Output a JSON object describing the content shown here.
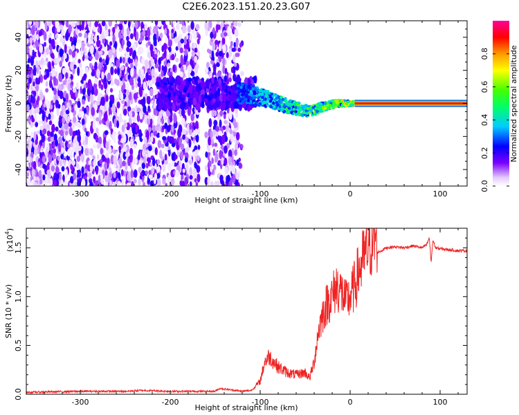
{
  "title": "C2E6.2023.151.20.23.G07",
  "colors": {
    "snr_line": "#ee2222",
    "spectrum_noise": "#6600ff"
  },
  "colorbar": {
    "label": "Normalized spectral amplitude",
    "ticks": [
      "0.0",
      "0.2",
      "0.4",
      "0.6",
      "0.8"
    ],
    "tick_values": [
      0.0,
      0.2,
      0.4,
      0.6,
      0.8
    ],
    "range": [
      0,
      1
    ],
    "colormap": "rainbow"
  },
  "chart_data": [
    {
      "type": "heatmap",
      "name": "spectrogram",
      "xlabel": "Height of straight line (km)",
      "ylabel": "Frequency (Hz)",
      "xlim": [
        -360,
        130
      ],
      "ylim": [
        -50,
        50
      ],
      "x_ticks": [
        -300,
        -200,
        -100,
        0,
        100
      ],
      "x_tick_labels": [
        "-300",
        "-200",
        "-100",
        "0",
        "100"
      ],
      "y_ticks": [
        -40,
        -20,
        0,
        20,
        40
      ],
      "y_tick_labels": [
        "-40",
        "-20",
        "0",
        "20",
        "40"
      ],
      "noise_region_x": [
        -360,
        -120
      ],
      "noise_gap_x": [
        -168,
        -160
      ],
      "signal_track": [
        {
          "x": -120,
          "freq": 6
        },
        {
          "x": -100,
          "freq": 4
        },
        {
          "x": -80,
          "freq": 0
        },
        {
          "x": -60,
          "freq": -3
        },
        {
          "x": -45,
          "freq": -5
        },
        {
          "x": -30,
          "freq": -2
        },
        {
          "x": -15,
          "freq": 0
        },
        {
          "x": 0,
          "freq": 0
        },
        {
          "x": 130,
          "freq": 0
        }
      ],
      "tone_start_x": 5
    },
    {
      "type": "line",
      "name": "snr",
      "xlabel": "Height of straight line (km)",
      "ylabel": "SNR (10 * v/v)",
      "y_scale_label": "(x10",
      "y_scale_exp": "4",
      "y_scale_suffix": ")",
      "xlim": [
        -360,
        130
      ],
      "ylim": [
        0,
        1.7
      ],
      "x_ticks": [
        -300,
        -200,
        -100,
        0,
        100
      ],
      "x_tick_labels": [
        "-300",
        "-200",
        "-100",
        "0",
        "100"
      ],
      "y_ticks": [
        0,
        0.5,
        1.0,
        1.5
      ],
      "y_tick_labels": [
        "0.0",
        "0.5",
        "1.0",
        "1.5"
      ],
      "series": [
        {
          "x": [
            -360,
            -300,
            -250,
            -230,
            -200,
            -150,
            -145,
            -120,
            -110,
            -100,
            -95,
            -90,
            -85,
            -80,
            -70,
            -60,
            -50,
            -45,
            -40,
            -35,
            -30,
            -25,
            -20,
            -15,
            -10,
            -5,
            0,
            5,
            10,
            15,
            20,
            25,
            30,
            35,
            40,
            50,
            60,
            70,
            80,
            85,
            88,
            90,
            92,
            95,
            100,
            110,
            120,
            130
          ],
          "y": [
            0.02,
            0.03,
            0.03,
            0.04,
            0.03,
            0.03,
            0.06,
            0.03,
            0.04,
            0.12,
            0.3,
            0.35,
            0.3,
            0.25,
            0.2,
            0.18,
            0.2,
            0.15,
            0.3,
            0.6,
            0.75,
            0.85,
            0.9,
            1.0,
            0.95,
            0.85,
            0.9,
            1.0,
            1.15,
            1.25,
            1.35,
            1.42,
            1.45,
            1.47,
            1.5,
            1.51,
            1.5,
            1.52,
            1.5,
            1.53,
            1.6,
            1.35,
            1.58,
            1.5,
            1.49,
            1.48,
            1.47,
            1.47
          ]
        }
      ]
    }
  ]
}
